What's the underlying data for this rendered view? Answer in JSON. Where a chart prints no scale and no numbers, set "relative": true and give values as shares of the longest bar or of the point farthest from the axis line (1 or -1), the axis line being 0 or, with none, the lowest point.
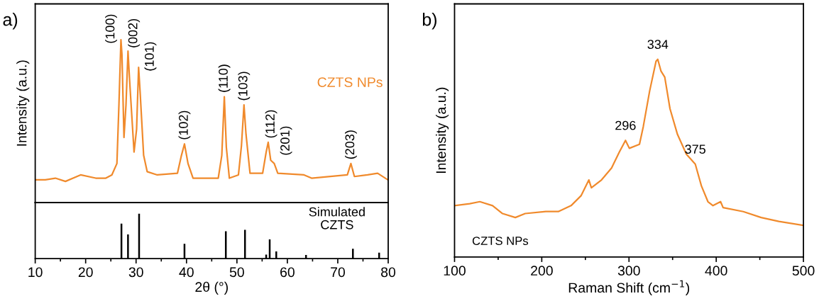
{
  "chart_data": [
    {
      "type": "line",
      "relative": true,
      "xlim": [
        10,
        80
      ],
      "tick_labels": false,
      "ylabel": "Intensity (a.u.)",
      "series": [
        {
          "name": "CZTS NPs",
          "color": "#f08a2c",
          "x": [
            10.15,
            12,
            14,
            16,
            19,
            22,
            24,
            25.2,
            26.2,
            26.6,
            27.0,
            27.2,
            27.6,
            28.0,
            28.4,
            28.7,
            29.6,
            30.1,
            30.5,
            30.8,
            31.5,
            32.2,
            34.2,
            38.2,
            39.0,
            39.6,
            40.3,
            41.3,
            46.3,
            47.0,
            47.5,
            47.9,
            48.5,
            50.3,
            50.9,
            51.4,
            51.8,
            52.6,
            55.1,
            55.8,
            56.2,
            56.7,
            57.4,
            58.1,
            63.3,
            64.8,
            71.9,
            72.6,
            73.3,
            75.9,
            77.9,
            79.9
          ],
          "values": [
            0.14,
            0.14,
            0.15,
            0.13,
            0.17,
            0.15,
            0.15,
            0.17,
            0.24,
            0.6,
            1.0,
            0.91,
            0.4,
            0.6,
            0.93,
            0.76,
            0.31,
            0.45,
            0.83,
            0.68,
            0.29,
            0.19,
            0.17,
            0.18,
            0.29,
            0.36,
            0.24,
            0.15,
            0.15,
            0.29,
            0.65,
            0.34,
            0.15,
            0.17,
            0.35,
            0.6,
            0.42,
            0.18,
            0.18,
            0.31,
            0.37,
            0.26,
            0.24,
            0.18,
            0.17,
            0.15,
            0.17,
            0.24,
            0.16,
            0.17,
            0.18,
            0.14
          ]
        }
      ],
      "annotations": [
        "a)",
        {
          "text": "(100)",
          "x": 27.0,
          "y": 1.0
        },
        {
          "text": "(002)",
          "x": 28.4,
          "y": 0.93
        },
        {
          "text": "(101)",
          "x": 30.5,
          "y": 0.83
        },
        {
          "text": "(102)",
          "x": 39.6,
          "y": 0.36
        },
        {
          "text": "(110)",
          "x": 47.5,
          "y": 0.65
        },
        {
          "text": "(103)",
          "x": 51.4,
          "y": 0.6
        },
        {
          "text": "(112)",
          "x": 56.2,
          "y": 0.37
        },
        {
          "text": "(201)",
          "x": 57.4,
          "y": 0.24
        },
        {
          "text": "(203)",
          "x": 72.6,
          "y": 0.24
        }
      ]
    },
    {
      "type": "bar",
      "relative": true,
      "xlim": [
        10,
        80
      ],
      "tick_labels": "x",
      "xlabel": "2θ (°)",
      "xticks": [
        10,
        20,
        30,
        40,
        50,
        60,
        70,
        80,
        {
          "value": 15,
          "label": null
        },
        {
          "value": 25,
          "label": null
        },
        {
          "value": 35,
          "label": null
        },
        {
          "value": 45,
          "label": null
        },
        {
          "value": 55,
          "label": null
        },
        {
          "value": 65,
          "label": null
        },
        {
          "value": 75,
          "label": null
        }
      ],
      "x": [
        27.1,
        28.4,
        30.6,
        39.6,
        47.8,
        51.6,
        55.8,
        56.5,
        57.8,
        63.7,
        73.0,
        78.2
      ],
      "values": [
        0.78,
        0.54,
        1.0,
        0.33,
        0.61,
        0.64,
        0.09,
        0.43,
        0.16,
        0.08,
        0.22,
        0.13
      ],
      "color": "#000000",
      "annotations": [
        "Simulated\nCZTS"
      ]
    },
    {
      "type": "line",
      "relative": true,
      "xlim": [
        100,
        500
      ],
      "tick_labels": "x",
      "xlabel": "Raman Shift (cm$^{−1}$)",
      "ylabel": "Intensity (a.u.)",
      "xticks": [
        100,
        200,
        300,
        400,
        500,
        {
          "value": 150,
          "label": null
        },
        {
          "value": 250,
          "label": null
        },
        {
          "value": 350,
          "label": null
        },
        {
          "value": 450,
          "label": null
        }
      ],
      "series": [
        {
          "color": "#f08a2c",
          "x": [
            100,
            117.4,
            129,
            143.6,
            155,
            169.7,
            181,
            204.6,
            219,
            233.6,
            245,
            254,
            256.9,
            268.5,
            280,
            288.8,
            296,
            300.4,
            312,
            316.4,
            323.7,
            331,
            333,
            336.7,
            341,
            347,
            355.6,
            365.8,
            376,
            383,
            390.5,
            396.3,
            405,
            407.9,
            431,
            451.5,
            471.8,
            500
          ],
          "values": [
            0.26,
            0.27,
            0.28,
            0.26,
            0.22,
            0.2,
            0.22,
            0.23,
            0.23,
            0.26,
            0.31,
            0.39,
            0.35,
            0.39,
            0.45,
            0.53,
            0.59,
            0.55,
            0.57,
            0.66,
            0.84,
            0.99,
            1.0,
            0.94,
            0.91,
            0.75,
            0.62,
            0.52,
            0.47,
            0.36,
            0.28,
            0.26,
            0.28,
            0.25,
            0.23,
            0.2,
            0.18,
            0.16
          ]
        }
      ],
      "annotations": [
        "b)",
        "CZTS NPs",
        {
          "text": "296",
          "x": 296,
          "y": 0.59
        },
        {
          "text": "334",
          "x": 333,
          "y": 1.0
        },
        {
          "text": "375",
          "x": 376,
          "y": 0.47
        }
      ]
    }
  ]
}
